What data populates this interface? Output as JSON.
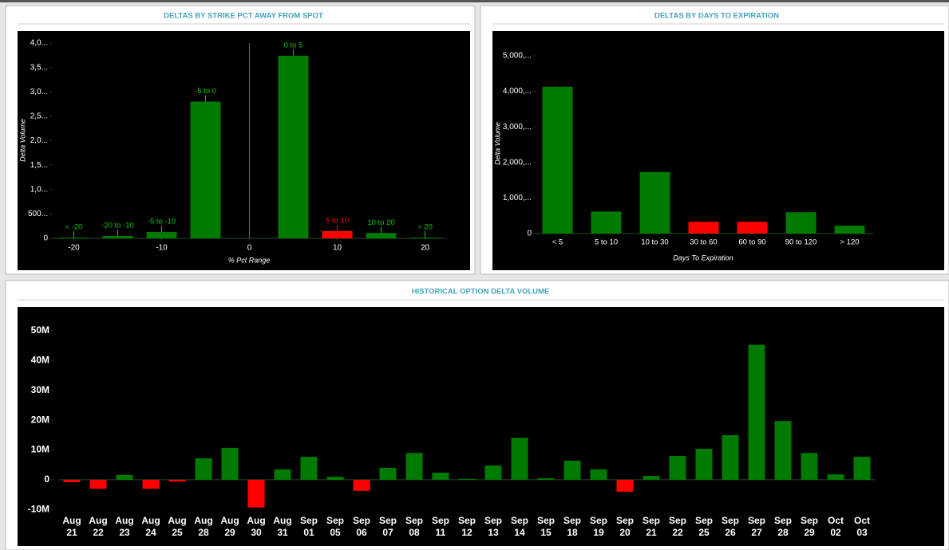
{
  "chart_data": [
    {
      "type": "bar",
      "title": "DELTAS BY STRIKE PCT AWAY FROM SPOT",
      "x_label": "% Pct Range",
      "y_label": "Delta Volume",
      "categories": [
        "< -20",
        "-20 to -10",
        "-5 to -10",
        "-5 to 0",
        "0 to 5",
        "5 to 10",
        "10 to 20",
        "> 20"
      ],
      "x": [
        -20,
        -15,
        -10,
        -5,
        5,
        10,
        15,
        20
      ],
      "values": [
        15,
        50,
        130,
        2800,
        3740,
        150,
        110,
        15
      ],
      "colors": [
        "#007a00",
        "#007a00",
        "#007a00",
        "#007a00",
        "#007a00",
        "#ff0000",
        "#007a00",
        "#007a00"
      ],
      "xlim": [
        -22.5,
        22.5
      ],
      "xticks": [
        -20,
        -10,
        0,
        10,
        20
      ],
      "ylim": [
        0,
        4000
      ],
      "yticks": [
        0,
        {
          "value": 500,
          "label": "500..."
        },
        {
          "value": 1000,
          "label": "1,0..."
        },
        {
          "value": 1500,
          "label": "1,5..."
        },
        {
          "value": 2000,
          "label": "2,0..."
        },
        {
          "value": 2500,
          "label": "2,5..."
        },
        {
          "value": 3000,
          "label": "3,0..."
        },
        {
          "value": 3500,
          "label": "3,5..."
        },
        {
          "value": 4000,
          "label": "4,0..."
        }
      ]
    },
    {
      "type": "bar",
      "title": "DELTAS BY DAYS TO EXPIRATION",
      "x_label": "Days To Expiration",
      "y_label": "Delta Volume",
      "categories": [
        "< 5",
        "5 to 10",
        "10 to 30",
        "30 to 60",
        "60 to 90",
        "90 to 120",
        "> 120"
      ],
      "values": [
        4130,
        620,
        1730,
        330,
        330,
        600,
        220
      ],
      "colors": [
        "#007a00",
        "#007a00",
        "#007a00",
        "#ff0000",
        "#ff0000",
        "#007a00",
        "#007a00"
      ],
      "ylim": [
        0,
        5000
      ],
      "yticks": [
        0,
        {
          "value": 1000,
          "label": "1,000,..."
        },
        {
          "value": 2000,
          "label": "2,000,..."
        },
        {
          "value": 3000,
          "label": "3,000,..."
        },
        {
          "value": 4000,
          "label": "4,000,..."
        },
        {
          "value": 5000,
          "label": "5,000,..."
        }
      ]
    },
    {
      "type": "bar",
      "title": "HISTORICAL OPTION DELTA VOLUME",
      "categories": [
        "Aug 21",
        "Aug 22",
        "Aug 23",
        "Aug 24",
        "Aug 25",
        "Aug 28",
        "Aug 29",
        "Aug 30",
        "Aug 31",
        "Sep 01",
        "Sep 05",
        "Sep 06",
        "Sep 07",
        "Sep 08",
        "Sep 11",
        "Sep 12",
        "Sep 13",
        "Sep 14",
        "Sep 15",
        "Sep 18",
        "Sep 19",
        "Sep 20",
        "Sep 21",
        "Sep 22",
        "Sep 25",
        "Sep 26",
        "Sep 27",
        "Sep 28",
        "Sep 29",
        "Oct 02",
        "Oct 03"
      ],
      "values": [
        -800000,
        -3000000,
        1600000,
        -3000000,
        -600000,
        7200000,
        10700000,
        -9300000,
        3500000,
        7700000,
        1000000,
        -3700000,
        4000000,
        9000000,
        2400000,
        300000,
        4800000,
        14100000,
        500000,
        6400000,
        3500000,
        -4000000,
        1300000,
        8000000,
        10400000,
        15000000,
        45300000,
        19700000,
        9000000,
        1800000,
        7700000
      ],
      "color": "#007a00",
      "negative_color": "#ff0000",
      "ylim": [
        -11000000,
        54000000
      ],
      "yticks": [
        {
          "value": -10000000,
          "label": "-10M"
        },
        0,
        {
          "value": 10000000,
          "label": "10M"
        },
        {
          "value": 20000000,
          "label": "20M"
        },
        {
          "value": 30000000,
          "label": "30M"
        },
        {
          "value": 40000000,
          "label": "40M"
        },
        {
          "value": 50000000,
          "label": "50M"
        }
      ]
    }
  ]
}
